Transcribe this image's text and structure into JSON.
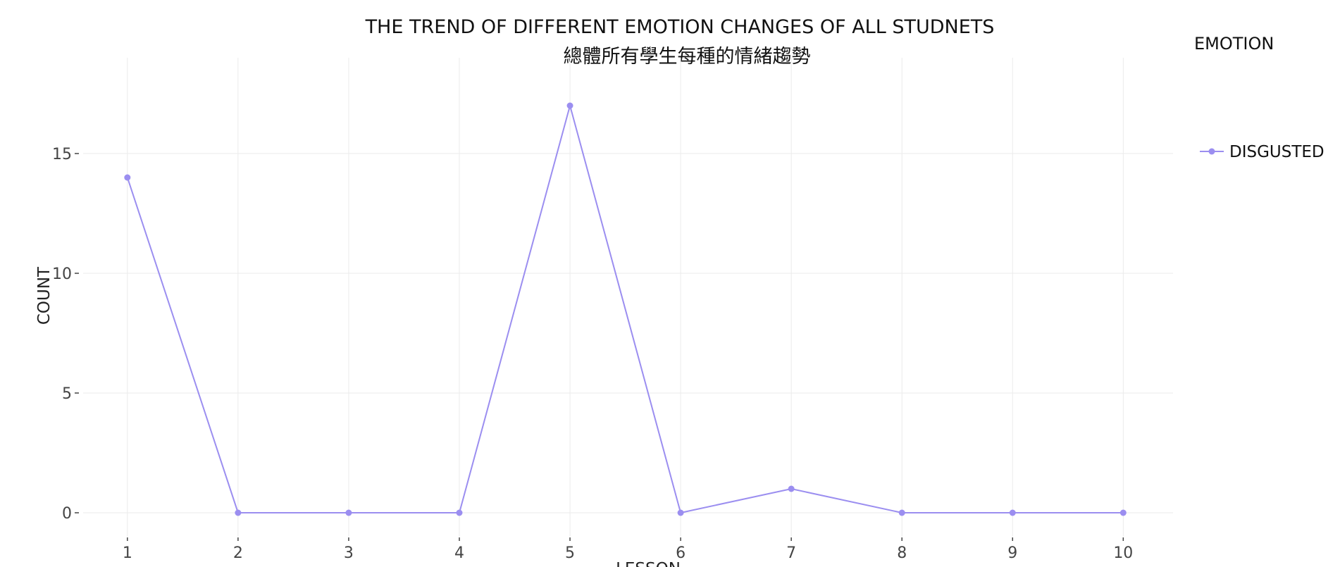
{
  "chart_data": {
    "type": "line",
    "title": "THE TREND OF DIFFERENT EMOTION CHANGES OF ALL STUDNETS",
    "subtitle": "總體所有學生每種的情緒趨勢",
    "xlabel": "LESSON",
    "ylabel": "COUNT",
    "x": [
      1,
      2,
      3,
      4,
      5,
      6,
      7,
      8,
      9,
      10
    ],
    "x_tick_labels": [
      "1",
      "2",
      "3",
      "4",
      "5",
      "6",
      "7",
      "8",
      "9",
      "10"
    ],
    "y_ticks": [
      0,
      5,
      10,
      15
    ],
    "y_tick_labels": [
      "0",
      "5",
      "10",
      "15"
    ],
    "ylim": [
      -1,
      19
    ],
    "xlim": [
      0.6,
      10.45
    ],
    "grid": true,
    "legend_title": "EMOTION",
    "legend_position": "right",
    "series": [
      {
        "name": "DISGUSTED",
        "color": "#9b8ef0",
        "values": [
          14,
          0,
          0,
          0,
          17,
          0,
          1,
          0,
          0,
          0
        ]
      }
    ]
  }
}
